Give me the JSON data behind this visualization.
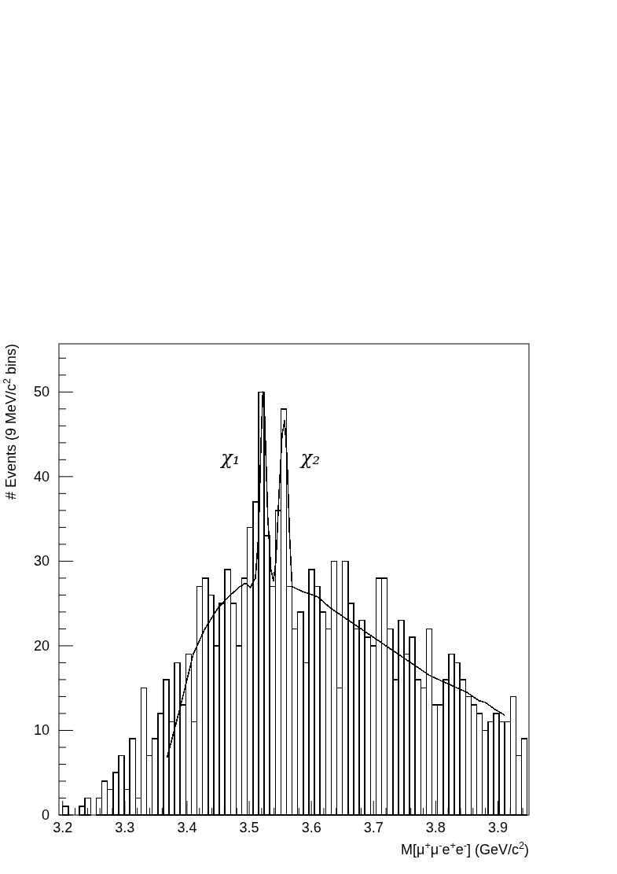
{
  "chart_data": {
    "type": "histogram",
    "xlabel": "M[μ$^{+}$μ$^{-}$e$^{+}$e$^{-}$] (GeV/c$^{2}$)",
    "ylabel": "# Events (9 MeV/c$^{2}$ bins)",
    "bins": [
      3.2,
      3.209,
      3.218,
      3.227,
      3.236,
      3.245,
      3.254,
      3.263,
      3.272,
      3.281,
      3.29,
      3.299,
      3.308,
      3.317,
      3.326,
      3.335,
      3.344,
      3.353,
      3.362,
      3.371,
      3.38,
      3.389,
      3.398,
      3.407,
      3.416,
      3.425,
      3.434,
      3.443,
      3.452,
      3.461,
      3.47,
      3.479,
      3.488,
      3.497,
      3.506,
      3.515,
      3.524,
      3.533,
      3.542,
      3.551,
      3.56,
      3.569,
      3.578,
      3.587,
      3.596,
      3.605,
      3.614,
      3.623,
      3.632,
      3.641,
      3.65,
      3.659,
      3.668,
      3.677,
      3.686,
      3.695,
      3.704,
      3.713,
      3.722,
      3.731,
      3.74,
      3.749,
      3.758,
      3.767,
      3.776,
      3.785,
      3.794,
      3.803,
      3.812,
      3.821,
      3.83,
      3.839,
      3.848,
      3.857,
      3.866,
      3.875,
      3.884,
      3.893,
      3.902,
      3.911,
      3.92,
      3.929,
      3.938,
      3.947
    ],
    "series": [
      {
        "color": "#000000",
        "values": [
          1,
          0,
          0,
          1,
          2,
          0,
          2,
          4,
          3,
          5,
          7,
          3,
          9,
          2,
          15,
          7,
          9,
          12,
          16,
          11,
          18,
          13,
          19,
          11,
          27,
          28,
          26,
          20,
          25,
          29,
          25,
          20,
          28,
          34,
          37,
          50,
          33,
          27,
          36,
          48,
          27,
          22,
          24,
          18,
          29,
          27,
          24,
          22,
          30,
          15,
          30,
          25,
          22,
          23,
          21,
          20,
          28,
          28,
          22,
          16,
          23,
          19,
          21,
          16,
          15,
          22,
          13,
          13,
          16,
          19,
          18,
          16,
          14,
          13,
          12,
          10,
          11,
          12,
          11,
          11,
          14,
          7,
          9
        ]
      },
      {
        "type": "line",
        "color": "#000000",
        "x": [
          3.368,
          3.39,
          3.41,
          3.428,
          3.45,
          3.47,
          3.485,
          3.494,
          3.502,
          3.51,
          3.515,
          3.519,
          3.522,
          3.525,
          3.53,
          3.535,
          3.539,
          3.543,
          3.548,
          3.553,
          3.557,
          3.561,
          3.565,
          3.569,
          3.586,
          3.61,
          3.63,
          3.65,
          3.67,
          3.7,
          3.73,
          3.76,
          3.79,
          3.82,
          3.85,
          3.87,
          3.88,
          3.895,
          3.911
        ],
        "values": [
          6.8,
          13,
          19,
          21.9,
          24.5,
          26,
          27,
          27.4,
          26.9,
          28,
          33,
          44,
          50,
          47,
          35,
          29,
          27.7,
          30,
          38,
          45,
          46.6,
          42,
          33,
          27,
          26.4,
          25.8,
          24.5,
          23.5,
          22.5,
          21,
          19.5,
          18,
          16.5,
          15.5,
          14.5,
          13.5,
          13.3,
          12.5,
          11.8
        ]
      }
    ],
    "annotations": [
      "χ₁",
      "χ₂"
    ],
    "xlim": [
      3.194,
      3.95
    ],
    "xticks": [
      3.2,
      {
        "value": 3.22,
        "label": null
      },
      {
        "value": 3.24,
        "label": null
      },
      {
        "value": 3.26,
        "label": null
      },
      {
        "value": 3.28,
        "label": null
      },
      3.3,
      {
        "value": 3.32,
        "label": null
      },
      {
        "value": 3.34,
        "label": null
      },
      {
        "value": 3.36,
        "label": null
      },
      {
        "value": 3.38,
        "label": null
      },
      3.4,
      {
        "value": 3.42,
        "label": null
      },
      {
        "value": 3.44,
        "label": null
      },
      {
        "value": 3.46,
        "label": null
      },
      {
        "value": 3.48,
        "label": null
      },
      3.5,
      {
        "value": 3.52,
        "label": null
      },
      {
        "value": 3.54,
        "label": null
      },
      {
        "value": 3.56,
        "label": null
      },
      {
        "value": 3.58,
        "label": null
      },
      3.6,
      {
        "value": 3.62,
        "label": null
      },
      {
        "value": 3.64,
        "label": null
      },
      {
        "value": 3.66,
        "label": null
      },
      {
        "value": 3.68,
        "label": null
      },
      3.7,
      {
        "value": 3.72,
        "label": null
      },
      {
        "value": 3.74,
        "label": null
      },
      {
        "value": 3.76,
        "label": null
      },
      {
        "value": 3.78,
        "label": null
      },
      3.8,
      {
        "value": 3.82,
        "label": null
      },
      {
        "value": 3.84,
        "label": null
      },
      {
        "value": 3.86,
        "label": null
      },
      {
        "value": 3.88,
        "label": null
      },
      3.9,
      {
        "value": 3.92,
        "label": null
      },
      {
        "value": 3.94,
        "label": null
      }
    ],
    "ylim": [
      0,
      55.7
    ],
    "yticks": [
      0,
      {
        "value": 2,
        "label": null
      },
      {
        "value": 4,
        "label": null
      },
      {
        "value": 6,
        "label": null
      },
      {
        "value": 8,
        "label": null
      },
      10,
      {
        "value": 12,
        "label": null
      },
      {
        "value": 14,
        "label": null
      },
      {
        "value": 16,
        "label": null
      },
      {
        "value": 18,
        "label": null
      },
      20,
      {
        "value": 22,
        "label": null
      },
      {
        "value": 24,
        "label": null
      },
      {
        "value": 26,
        "label": null
      },
      {
        "value": 28,
        "label": null
      },
      30,
      {
        "value": 32,
        "label": null
      },
      {
        "value": 34,
        "label": null
      },
      {
        "value": 36,
        "label": null
      },
      {
        "value": 38,
        "label": null
      },
      40,
      {
        "value": 42,
        "label": null
      },
      {
        "value": 44,
        "label": null
      },
      {
        "value": 46,
        "label": null
      },
      {
        "value": 48,
        "label": null
      },
      50,
      {
        "value": 52,
        "label": null
      },
      {
        "value": 54,
        "label": null
      }
    ],
    "grid": false
  }
}
